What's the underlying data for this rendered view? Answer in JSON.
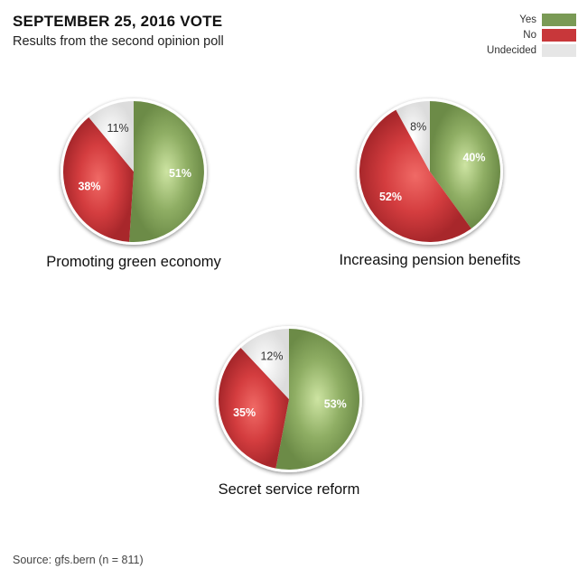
{
  "header": {
    "title": "SEPTEMBER 25, 2016 VOTE",
    "subtitle": "Results from the second opinion poll"
  },
  "legend": [
    {
      "label": "Yes",
      "color": "#7a9a55"
    },
    {
      "label": "No",
      "color": "#c8373a"
    },
    {
      "label": "Undecided",
      "color": "#e6e6e6"
    }
  ],
  "chart_data": [
    {
      "type": "pie",
      "title": "Promoting green economy",
      "categories": [
        "Yes",
        "No",
        "Undecided"
      ],
      "values": [
        51,
        38,
        11
      ],
      "labels": [
        "51%",
        "38%",
        "11%"
      ]
    },
    {
      "type": "pie",
      "title": "Increasing pension benefits",
      "categories": [
        "Yes",
        "No",
        "Undecided"
      ],
      "values": [
        40,
        52,
        8
      ],
      "labels": [
        "40%",
        "52%",
        "8%"
      ]
    },
    {
      "type": "pie",
      "title": "Secret service reform",
      "categories": [
        "Yes",
        "No",
        "Undecided"
      ],
      "values": [
        53,
        35,
        12
      ],
      "labels": [
        "53%",
        "35%",
        "12%"
      ]
    }
  ],
  "footer": {
    "source": "Source: gfs.bern (n = 811)"
  }
}
